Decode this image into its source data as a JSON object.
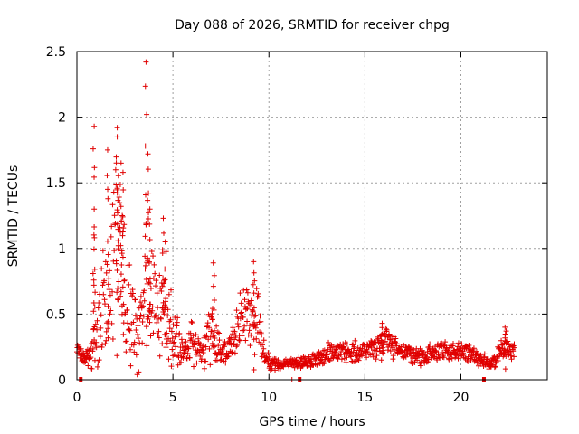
{
  "chart_data": {
    "type": "scatter",
    "title": "Day 088 of 2026, SRMTID for receiver chpg",
    "xlabel": "GPS time / hours",
    "ylabel": "SRMTID / TECUs",
    "xlim": [
      0,
      24.5
    ],
    "ylim": [
      0,
      2.5
    ],
    "xticks": [
      0,
      5,
      10,
      15,
      20
    ],
    "xtick_labels": [
      "0",
      "5",
      "10",
      "15",
      "20"
    ],
    "yticks": [
      0,
      0.5,
      1,
      1.5,
      2,
      2.5
    ],
    "ytick_labels": [
      "0",
      "0.5",
      "1",
      "1.5",
      "2",
      "2.5"
    ],
    "grid": true,
    "marker": "+",
    "color": "#e00000",
    "series": [
      {
        "name": "SRMTID",
        "envelope": [
          {
            "x": 0.0,
            "base": 0.25,
            "spread": 0.05
          },
          {
            "x": 0.4,
            "base": 0.15,
            "spread": 0.08
          },
          {
            "x": 0.7,
            "base": 0.18,
            "spread": 0.12
          },
          {
            "x": 1.0,
            "base": 0.35,
            "spread": 0.3
          },
          {
            "x": 1.4,
            "base": 0.55,
            "spread": 0.5
          },
          {
            "x": 1.8,
            "base": 0.85,
            "spread": 0.7
          },
          {
            "x": 2.1,
            "base": 1.1,
            "spread": 0.8
          },
          {
            "x": 2.4,
            "base": 0.85,
            "spread": 0.7
          },
          {
            "x": 2.8,
            "base": 0.45,
            "spread": 0.4
          },
          {
            "x": 3.2,
            "base": 0.3,
            "spread": 0.3
          },
          {
            "x": 3.6,
            "base": 0.8,
            "spread": 0.7
          },
          {
            "x": 4.0,
            "base": 0.55,
            "spread": 0.5
          },
          {
            "x": 4.5,
            "base": 0.6,
            "spread": 0.5
          },
          {
            "x": 5.0,
            "base": 0.3,
            "spread": 0.3
          },
          {
            "x": 5.5,
            "base": 0.22,
            "spread": 0.15
          },
          {
            "x": 6.0,
            "base": 0.28,
            "spread": 0.2
          },
          {
            "x": 6.5,
            "base": 0.2,
            "spread": 0.12
          },
          {
            "x": 7.0,
            "base": 0.35,
            "spread": 0.3
          },
          {
            "x": 7.5,
            "base": 0.2,
            "spread": 0.12
          },
          {
            "x": 8.0,
            "base": 0.25,
            "spread": 0.15
          },
          {
            "x": 8.5,
            "base": 0.4,
            "spread": 0.3
          },
          {
            "x": 9.0,
            "base": 0.5,
            "spread": 0.3
          },
          {
            "x": 9.5,
            "base": 0.45,
            "spread": 0.3
          },
          {
            "x": 9.8,
            "base": 0.15,
            "spread": 0.08
          },
          {
            "x": 10.5,
            "base": 0.11,
            "spread": 0.05
          },
          {
            "x": 11.5,
            "base": 0.13,
            "spread": 0.05
          },
          {
            "x": 12.5,
            "base": 0.16,
            "spread": 0.08
          },
          {
            "x": 13.5,
            "base": 0.22,
            "spread": 0.1
          },
          {
            "x": 14.5,
            "base": 0.2,
            "spread": 0.1
          },
          {
            "x": 15.5,
            "base": 0.25,
            "spread": 0.1
          },
          {
            "x": 16.0,
            "base": 0.3,
            "spread": 0.12
          },
          {
            "x": 17.0,
            "base": 0.2,
            "spread": 0.08
          },
          {
            "x": 18.0,
            "base": 0.18,
            "spread": 0.08
          },
          {
            "x": 19.0,
            "base": 0.22,
            "spread": 0.08
          },
          {
            "x": 20.0,
            "base": 0.22,
            "spread": 0.08
          },
          {
            "x": 20.8,
            "base": 0.18,
            "spread": 0.08
          },
          {
            "x": 21.5,
            "base": 0.12,
            "spread": 0.06
          },
          {
            "x": 22.3,
            "base": 0.25,
            "spread": 0.12
          },
          {
            "x": 22.8,
            "base": 0.22,
            "spread": 0.08
          }
        ],
        "x_start": 0.0,
        "x_end": 22.8,
        "x_step": 0.02,
        "peaks": [
          {
            "x": 0.9,
            "y": 1.93
          },
          {
            "x": 0.9,
            "y": 1.3
          },
          {
            "x": 1.6,
            "y": 1.75
          },
          {
            "x": 2.1,
            "y": 1.92
          },
          {
            "x": 2.1,
            "y": 1.85
          },
          {
            "x": 2.3,
            "y": 1.65
          },
          {
            "x": 2.4,
            "y": 1.58
          },
          {
            "x": 3.6,
            "y": 2.42
          },
          {
            "x": 3.7,
            "y": 1.72
          },
          {
            "x": 3.8,
            "y": 1.3
          },
          {
            "x": 4.5,
            "y": 1.23
          },
          {
            "x": 4.6,
            "y": 1.05
          },
          {
            "x": 7.1,
            "y": 0.89
          },
          {
            "x": 9.2,
            "y": 0.9
          },
          {
            "x": 15.9,
            "y": 0.43
          },
          {
            "x": 22.3,
            "y": 0.4
          }
        ],
        "gaps": [
          {
            "x": 0.2,
            "y": 0.0
          },
          {
            "x": 11.6,
            "y": 0.0
          },
          {
            "x": 21.2,
            "y": 0.0
          }
        ],
        "lone_points": [
          {
            "x": 11.2,
            "y": 0.0
          }
        ]
      }
    ]
  }
}
